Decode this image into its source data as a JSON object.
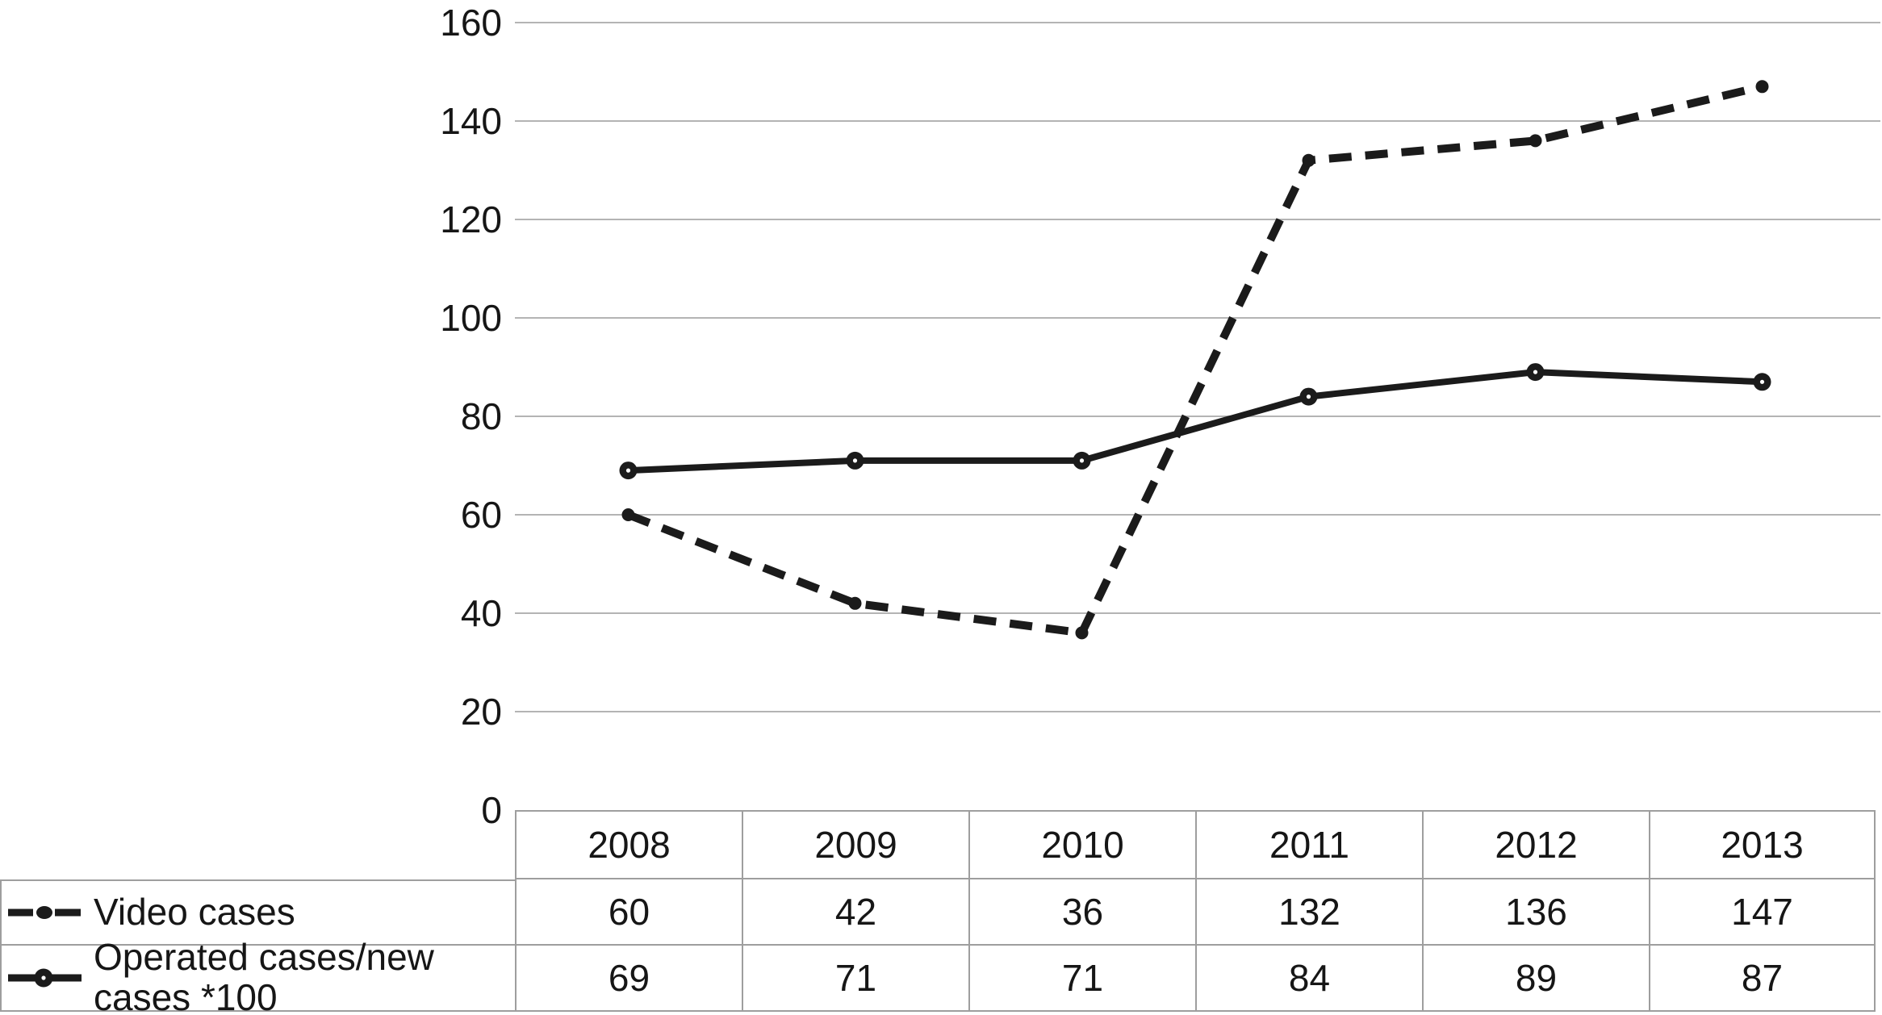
{
  "chart_data": {
    "type": "line",
    "title": "",
    "xlabel": "",
    "ylabel": "",
    "categories": [
      "2008",
      "2009",
      "2010",
      "2011",
      "2012",
      "2013"
    ],
    "series": [
      {
        "name": "Video cases",
        "line_style": "dashed",
        "marker": "small-dot",
        "color": "#1b1b1b",
        "values": [
          60,
          42,
          36,
          132,
          136,
          147
        ]
      },
      {
        "name": "Operated cases/new cases *100",
        "line_style": "solid",
        "marker": "dot-with-white-center",
        "color": "#1b1b1b",
        "values": [
          69,
          71,
          71,
          84,
          89,
          87
        ]
      }
    ],
    "ylim": [
      0,
      160
    ],
    "ytick_step": 20,
    "yticks": [
      "0",
      "20",
      "40",
      "60",
      "80",
      "100",
      "120",
      "140",
      "160"
    ],
    "grid": "horizontal-only",
    "legend_position": "left-column-of-data-table"
  },
  "colors": {
    "series": "#1b1b1b",
    "gridline": "#b4b4b4",
    "table_border": "#9e9e9e",
    "text": "#161616",
    "background": "#ffffff"
  }
}
